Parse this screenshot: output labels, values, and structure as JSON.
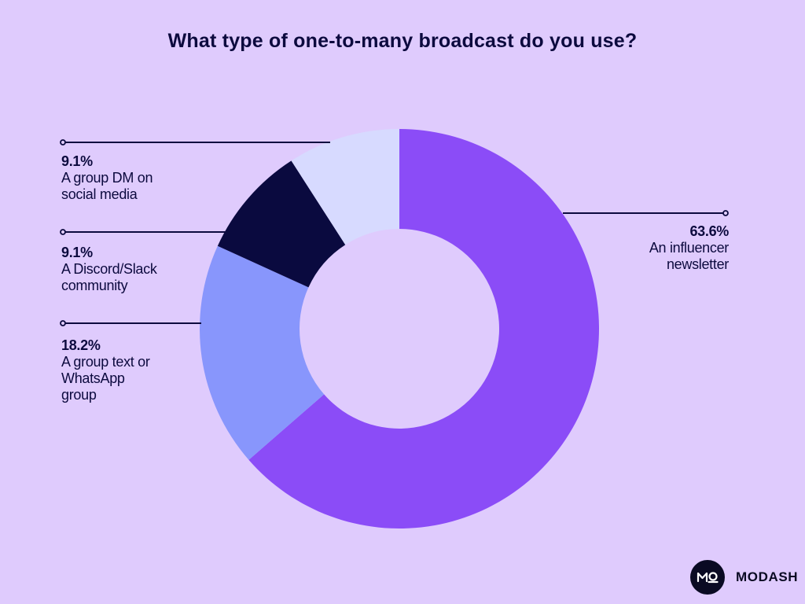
{
  "title": "What type of one-to-many broadcast do you use?",
  "chart_data": {
    "type": "pie",
    "donut": true,
    "start_angle_deg": 0,
    "direction": "clockwise",
    "slices": [
      {
        "label": "An influencer newsletter",
        "value": 63.6,
        "value_label": "63.6%",
        "color": "#8b4cf7"
      },
      {
        "label": "A group text or WhatsApp group",
        "value": 18.2,
        "value_label": "18.2%",
        "color": "#8896fc"
      },
      {
        "label": "A Discord/Slack community",
        "value": 9.1,
        "value_label": "9.1%",
        "color": "#0a0a3f"
      },
      {
        "label": "A group DM on social media",
        "value": 9.1,
        "value_label": "9.1%",
        "color": "#d7daff"
      }
    ]
  },
  "labels": {
    "newsletter": {
      "pct": "63.6%",
      "lines": "An influencer\nnewsletter"
    },
    "group_text": {
      "pct": "18.2%",
      "lines": "A group text or\nWhatsApp\ngroup"
    },
    "discord": {
      "pct": "9.1%",
      "lines": "A Discord/Slack\ncommunity"
    },
    "group_dm": {
      "pct": "9.1%",
      "lines": "A group DM on\nsocial media"
    }
  },
  "brand": {
    "name": "MODASH",
    "logo_text": "MO"
  },
  "colors": {
    "background": "#dfcbfd",
    "text": "#0c0a3e",
    "leader": "#0c0a3e"
  }
}
